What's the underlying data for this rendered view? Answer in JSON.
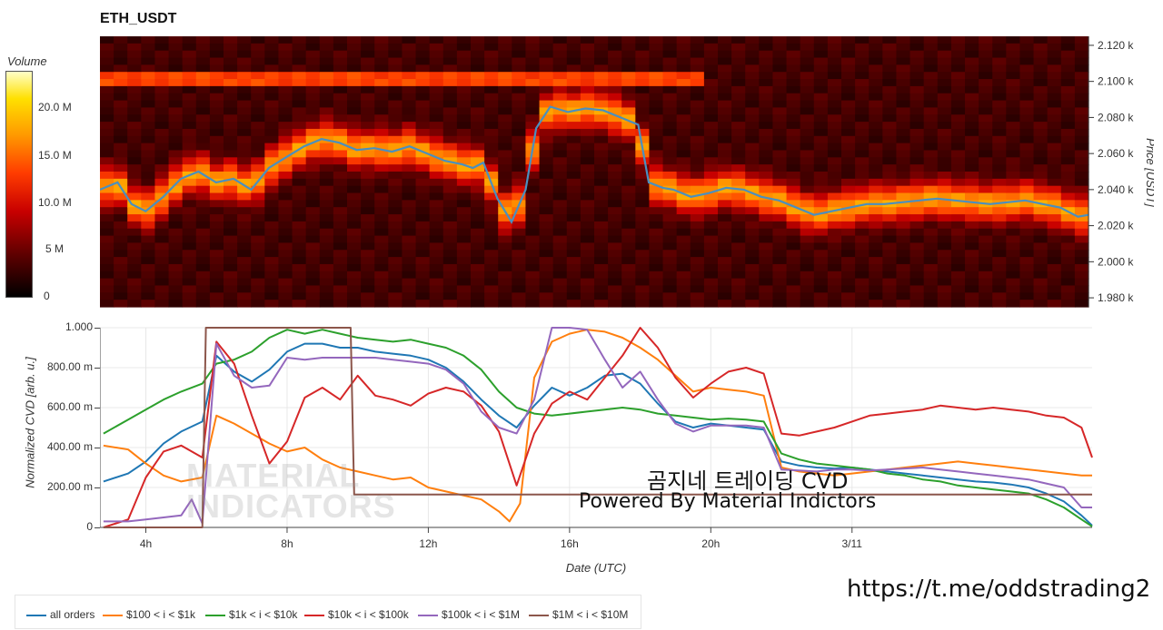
{
  "title": "ETH_USDT",
  "colorbar": {
    "title": "Volume",
    "ticks": [
      "20.0 M",
      "15.0 M",
      "10.0 M",
      "5 M",
      "0"
    ]
  },
  "overlay": {
    "line1": "곰지네 트레이딩 CVD",
    "line2": "Powered By Material Indictors",
    "url": "https://t.me/oddstrading2",
    "watermark_line1": "MATERIAL",
    "watermark_line2": "INDICATORS"
  },
  "chart_data": [
    {
      "type": "heatmap",
      "name": "orderbook-heatmap",
      "title": "ETH_USDT",
      "ylabel": "Price [USDT]",
      "ylim": [
        1975,
        2125
      ],
      "y_ticks": [
        "2.120 k",
        "2.100 k",
        "2.080 k",
        "2.060 k",
        "2.040 k",
        "2.020 k",
        "2.000 k",
        "1.980 k"
      ],
      "y_tick_values": [
        2120,
        2100,
        2080,
        2060,
        2040,
        2020,
        2000,
        1980
      ],
      "xlim": [
        2.7,
        30.8
      ],
      "colorscale": [
        "#000000",
        "#5a0000",
        "#c80000",
        "#ff3c00",
        "#ff9a00",
        "#ffe000",
        "#ffffc8"
      ],
      "price_line_color": "#4a8fbf",
      "price": {
        "x": [
          2.7,
          3.2,
          3.6,
          4.0,
          4.5,
          5.0,
          5.5,
          6.0,
          6.5,
          7.0,
          7.5,
          8.0,
          8.5,
          9.0,
          9.5,
          10.0,
          10.5,
          11.0,
          11.5,
          12.0,
          12.5,
          13.0,
          13.3,
          13.6,
          14.0,
          14.4,
          14.8,
          15.1,
          15.5,
          16.0,
          16.5,
          17.0,
          17.5,
          18.0,
          18.3,
          18.7,
          19.0,
          19.5,
          20.0,
          20.5,
          21.0,
          21.5,
          22.0,
          22.5,
          23.0,
          23.5,
          24.0,
          24.5,
          25.0,
          25.5,
          26.0,
          26.5,
          27.0,
          27.5,
          28.0,
          28.5,
          29.0,
          29.5,
          30.0,
          30.5,
          30.8
        ],
        "y": [
          2040,
          2044,
          2032,
          2028,
          2036,
          2046,
          2050,
          2044,
          2046,
          2040,
          2052,
          2058,
          2064,
          2068,
          2066,
          2062,
          2063,
          2061,
          2064,
          2060,
          2056,
          2054,
          2052,
          2055,
          2035,
          2022,
          2040,
          2074,
          2086,
          2083,
          2085,
          2084,
          2080,
          2076,
          2044,
          2041,
          2040,
          2036,
          2038,
          2041,
          2040,
          2036,
          2034,
          2030,
          2026,
          2028,
          2030,
          2032,
          2032,
          2033,
          2034,
          2035,
          2034,
          2033,
          2032,
          2033,
          2034,
          2032,
          2030,
          2025,
          2026
        ]
      }
    },
    {
      "type": "line",
      "name": "cvd-chart",
      "xlabel": "Date (UTC)",
      "ylabel": "Normalized CVD [arb. u.]",
      "ylim": [
        0,
        1000
      ],
      "xlim": [
        2.7,
        30.8
      ],
      "x_ticks": [
        "4h",
        "8h",
        "12h",
        "16h",
        "20h",
        "3/11"
      ],
      "x_tick_values": [
        4,
        8,
        12,
        16,
        20,
        24
      ],
      "y_ticks": [
        "0",
        "200.00 m",
        "400.00 m",
        "600.00 m",
        "800.00 m",
        "1.000"
      ],
      "y_tick_values": [
        0,
        200,
        400,
        600,
        800,
        1000
      ],
      "legend_position": "bottom",
      "series": [
        {
          "name": "all orders",
          "color": "#1f77b4",
          "x": [
            2.8,
            3.5,
            4.0,
            4.5,
            5.0,
            5.6,
            6.0,
            6.5,
            7.0,
            7.5,
            8.0,
            8.5,
            9.0,
            9.5,
            10.0,
            10.5,
            11.0,
            11.5,
            12.0,
            12.5,
            13.0,
            13.5,
            14.0,
            14.5,
            15.0,
            15.5,
            16.0,
            16.5,
            17.0,
            17.5,
            18.0,
            18.5,
            19.0,
            19.5,
            20.0,
            20.5,
            21.0,
            21.5,
            22.0,
            22.5,
            23.0,
            23.5,
            24.0,
            24.5,
            25.0,
            25.5,
            26.0,
            26.5,
            27.0,
            27.5,
            28.0,
            28.5,
            29.0,
            29.5,
            30.0,
            30.5,
            30.8
          ],
          "y": [
            230,
            270,
            330,
            420,
            480,
            530,
            860,
            780,
            730,
            790,
            880,
            920,
            920,
            900,
            900,
            880,
            870,
            860,
            840,
            800,
            730,
            640,
            560,
            500,
            610,
            700,
            660,
            700,
            760,
            770,
            720,
            620,
            530,
            500,
            520,
            510,
            500,
            490,
            330,
            310,
            300,
            295,
            300,
            290,
            280,
            270,
            260,
            250,
            240,
            230,
            225,
            215,
            200,
            170,
            130,
            60,
            10
          ]
        },
        {
          "name": "$100 < i < $1k",
          "color": "#ff7f0e",
          "x": [
            2.8,
            3.5,
            4.0,
            4.5,
            5.0,
            5.6,
            6.0,
            6.5,
            7.0,
            7.5,
            8.0,
            8.5,
            9.0,
            9.5,
            10.0,
            10.5,
            11.0,
            11.5,
            12.0,
            12.5,
            13.0,
            13.5,
            14.0,
            14.3,
            14.6,
            15.0,
            15.5,
            16.0,
            16.5,
            17.0,
            17.5,
            18.0,
            18.5,
            19.0,
            19.5,
            20.0,
            20.5,
            21.0,
            21.5,
            22.0,
            22.5,
            23.0,
            23.5,
            24.0,
            24.5,
            25.0,
            25.5,
            26.0,
            26.5,
            27.0,
            27.5,
            28.0,
            28.5,
            29.0,
            29.5,
            30.0,
            30.5,
            30.8
          ],
          "y": [
            410,
            390,
            320,
            260,
            230,
            250,
            560,
            520,
            470,
            420,
            380,
            400,
            340,
            300,
            280,
            260,
            240,
            250,
            200,
            180,
            160,
            140,
            80,
            30,
            120,
            750,
            930,
            970,
            990,
            980,
            950,
            900,
            840,
            760,
            680,
            700,
            690,
            680,
            660,
            300,
            280,
            270,
            260,
            270,
            280,
            290,
            300,
            310,
            320,
            330,
            320,
            310,
            300,
            290,
            280,
            270,
            260,
            260
          ]
        },
        {
          "name": "$1k < i < $10k",
          "color": "#2ca02c",
          "x": [
            2.8,
            3.5,
            4.0,
            4.5,
            5.0,
            5.6,
            6.0,
            6.5,
            7.0,
            7.5,
            8.0,
            8.5,
            9.0,
            9.5,
            10.0,
            10.5,
            11.0,
            11.5,
            12.0,
            12.5,
            13.0,
            13.5,
            14.0,
            14.5,
            15.0,
            15.5,
            16.0,
            16.5,
            17.0,
            17.5,
            18.0,
            18.5,
            19.0,
            19.5,
            20.0,
            20.5,
            21.0,
            21.5,
            22.0,
            22.5,
            23.0,
            23.5,
            24.0,
            24.5,
            25.0,
            25.5,
            26.0,
            26.5,
            27.0,
            27.5,
            28.0,
            28.5,
            29.0,
            29.5,
            30.0,
            30.5,
            30.8
          ],
          "y": [
            470,
            540,
            590,
            640,
            680,
            720,
            820,
            840,
            880,
            950,
            990,
            970,
            990,
            970,
            950,
            940,
            930,
            940,
            920,
            900,
            860,
            790,
            680,
            600,
            570,
            560,
            570,
            580,
            590,
            600,
            590,
            570,
            560,
            550,
            540,
            545,
            540,
            530,
            370,
            340,
            320,
            310,
            300,
            290,
            270,
            260,
            240,
            230,
            210,
            200,
            190,
            180,
            170,
            140,
            100,
            40,
            5
          ]
        },
        {
          "name": "$10k < i < $100k",
          "color": "#d62728",
          "x": [
            2.8,
            3.5,
            4.0,
            4.5,
            5.0,
            5.6,
            6.0,
            6.5,
            7.0,
            7.5,
            8.0,
            8.5,
            9.0,
            9.5,
            10.0,
            10.5,
            11.0,
            11.5,
            12.0,
            12.5,
            13.0,
            13.5,
            14.0,
            14.5,
            15.0,
            15.5,
            16.0,
            16.5,
            17.0,
            17.5,
            18.0,
            18.5,
            19.0,
            19.5,
            20.0,
            20.5,
            21.0,
            21.5,
            22.0,
            22.5,
            23.0,
            23.5,
            24.0,
            24.5,
            25.0,
            25.5,
            26.0,
            26.5,
            27.0,
            27.5,
            28.0,
            28.5,
            29.0,
            29.5,
            30.0,
            30.5,
            30.8
          ],
          "y": [
            0,
            40,
            250,
            380,
            410,
            350,
            930,
            820,
            560,
            320,
            430,
            650,
            700,
            640,
            760,
            660,
            640,
            610,
            670,
            700,
            680,
            610,
            480,
            210,
            470,
            620,
            680,
            640,
            750,
            860,
            1000,
            900,
            750,
            650,
            720,
            780,
            800,
            770,
            470,
            460,
            480,
            500,
            530,
            560,
            570,
            580,
            590,
            610,
            600,
            590,
            600,
            590,
            580,
            560,
            550,
            500,
            350
          ]
        },
        {
          "name": "$100k < i < $1M",
          "color": "#9467bd",
          "x": [
            2.8,
            3.5,
            4.0,
            4.5,
            5.0,
            5.3,
            5.6,
            6.0,
            6.5,
            7.0,
            7.5,
            8.0,
            8.5,
            9.0,
            9.5,
            10.0,
            10.5,
            11.0,
            11.5,
            12.0,
            12.5,
            13.0,
            13.5,
            14.0,
            14.5,
            15.0,
            15.5,
            16.0,
            16.5,
            17.0,
            17.5,
            18.0,
            18.5,
            19.0,
            19.5,
            20.0,
            20.5,
            21.0,
            21.5,
            22.0,
            22.5,
            23.0,
            23.5,
            24.0,
            24.5,
            25.0,
            25.5,
            26.0,
            26.5,
            27.0,
            27.5,
            28.0,
            28.5,
            29.0,
            29.5,
            30.0,
            30.5,
            30.8
          ],
          "y": [
            30,
            30,
            40,
            50,
            60,
            140,
            20,
            920,
            760,
            700,
            710,
            850,
            840,
            850,
            850,
            850,
            850,
            840,
            830,
            820,
            790,
            720,
            580,
            500,
            470,
            640,
            1000,
            1000,
            990,
            840,
            700,
            780,
            640,
            520,
            480,
            510,
            510,
            510,
            500,
            290,
            285,
            280,
            290,
            290,
            285,
            290,
            295,
            300,
            290,
            280,
            270,
            260,
            250,
            240,
            220,
            200,
            100,
            100
          ]
        },
        {
          "name": "$1M < i < $10M",
          "color": "#8c564b",
          "x": [
            2.8,
            5.6,
            5.7,
            9.8,
            9.9,
            30.8
          ],
          "y": [
            0,
            0,
            1000,
            1000,
            165,
            165
          ]
        }
      ]
    }
  ]
}
